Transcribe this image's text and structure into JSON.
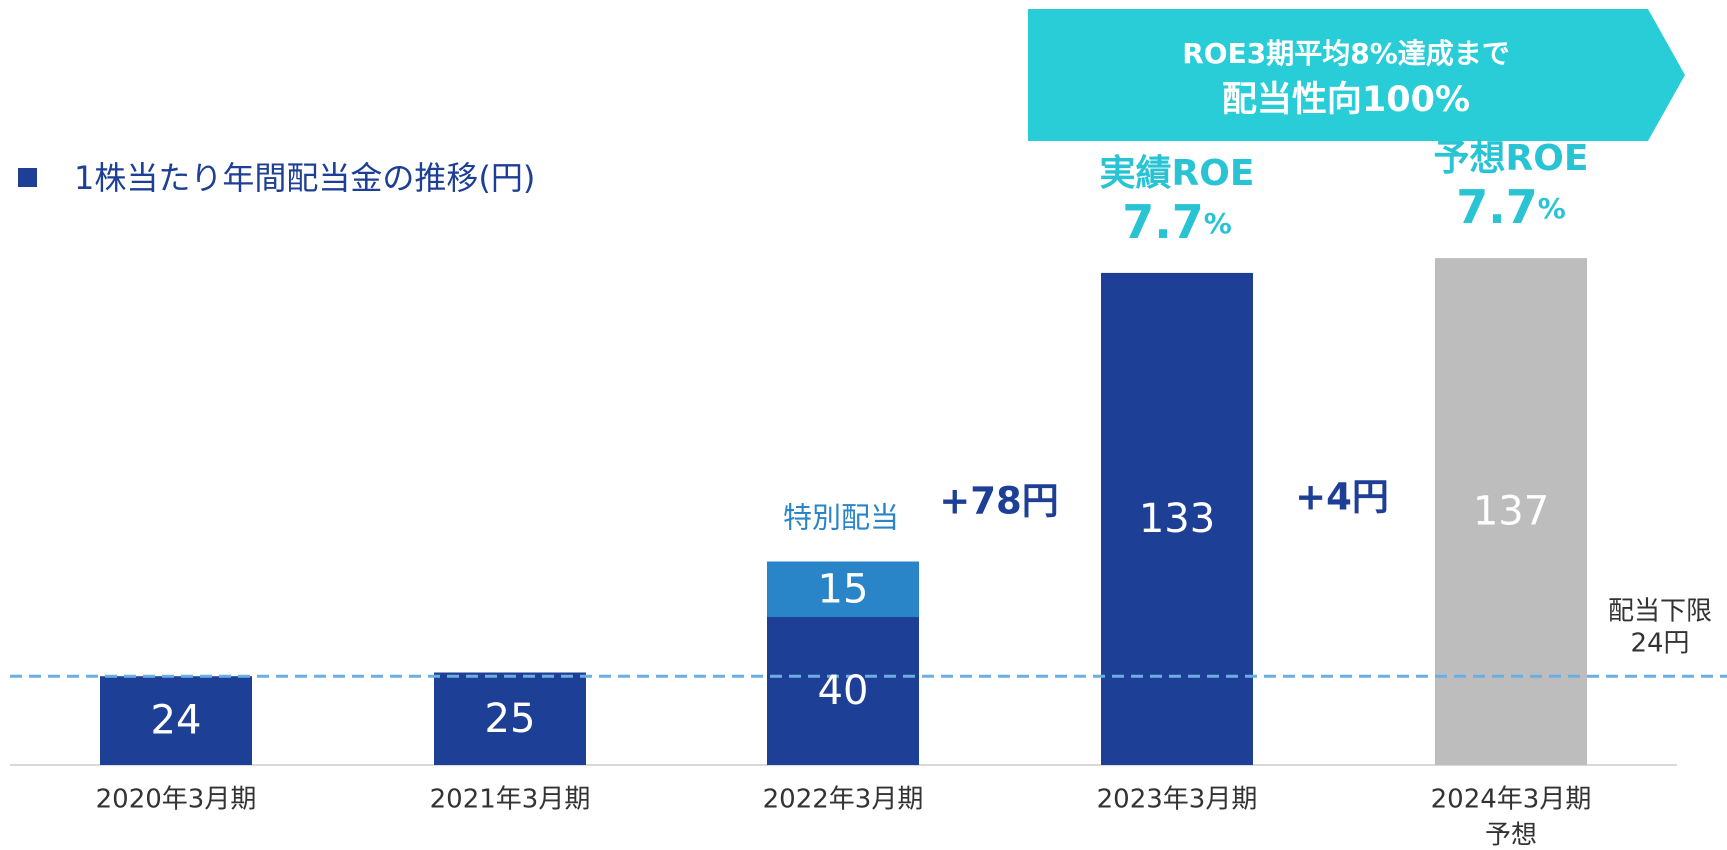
{
  "chart_data": {
    "type": "bar",
    "stacked": true,
    "title": "1株当たり年間配当金の推移(円)",
    "categories": [
      "2020年3月期",
      "2021年3月期",
      "2022年3月期",
      "2023年3月期",
      "2024年3月期"
    ],
    "category_sublabels": [
      null,
      null,
      null,
      null,
      "予想"
    ],
    "series": [
      {
        "color": "#1e3f96",
        "point_colors": [
          null,
          null,
          null,
          null,
          "#bdbdbd"
        ],
        "values": [
          24,
          25,
          40,
          133,
          137
        ]
      },
      {
        "name": "特別配当",
        "color": "#2a85c8",
        "values": [
          null,
          null,
          15,
          null,
          null
        ]
      }
    ],
    "ylim": [
      0,
      140
    ],
    "reference_line": {
      "value": 24,
      "label": [
        "配当下限",
        "24円"
      ],
      "color": "#6aafe0"
    },
    "annotations": [
      "+78円",
      "+4円"
    ],
    "roe": [
      {
        "label": "実績ROE",
        "value": 7.7,
        "unit": "%"
      },
      {
        "label": "予想ROE",
        "value": 7.7,
        "unit": "%"
      }
    ],
    "banner": [
      "ROE3期平均8%達成まで",
      "配当性向100%"
    ]
  }
}
